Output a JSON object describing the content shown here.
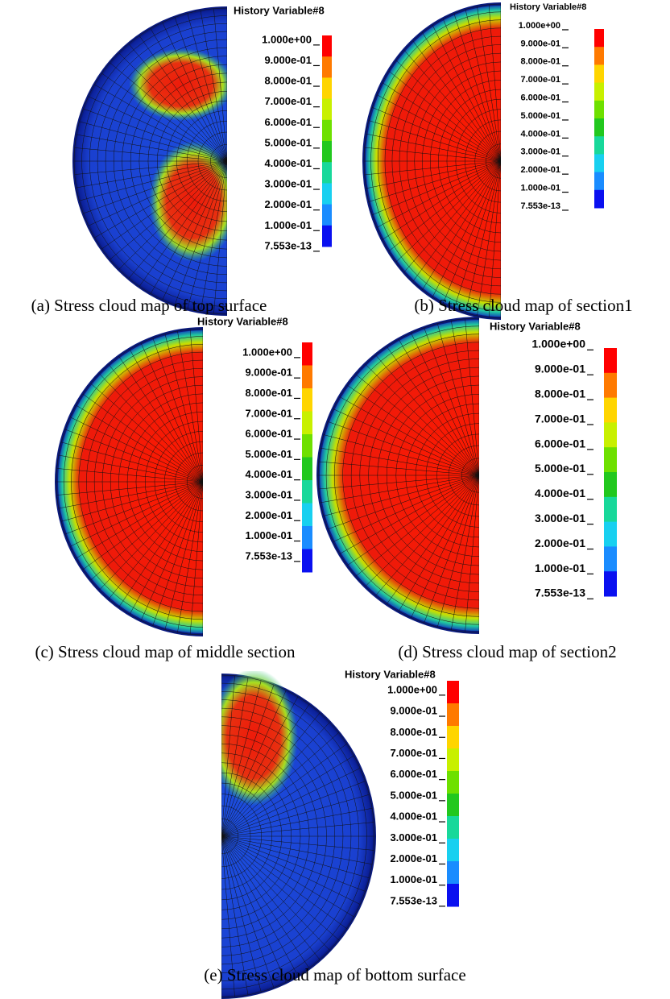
{
  "colorbar_colors": [
    "#ff0000",
    "#ff7a00",
    "#ffd500",
    "#c8f000",
    "#6ee000",
    "#22c81e",
    "#18d89a",
    "#18d0f0",
    "#1a8cff",
    "#0a10f0"
  ],
  "panels": [
    {
      "legend_title": "History Variable#8",
      "levels": [
        "1.000e+00",
        "9.000e-01",
        "8.000e-01",
        "7.000e-01",
        "6.000e-01",
        "5.000e-01",
        "4.000e-01",
        "3.000e-01",
        "2.000e-01",
        "1.000e-01",
        "7.553e-13"
      ],
      "caption": "(a) Stress cloud map of top surface"
    },
    {
      "legend_title": "History Variable#8",
      "levels": [
        "1.000e+00",
        "9.000e-01",
        "8.000e-01",
        "7.000e-01",
        "6.000e-01",
        "5.000e-01",
        "4.000e-01",
        "3.000e-01",
        "2.000e-01",
        "1.000e-01",
        "7.553e-13"
      ],
      "caption": "(b) Stress cloud map of section1"
    },
    {
      "legend_title": "History Variable#8",
      "levels": [
        "1.000e+00",
        "9.000e-01",
        "8.000e-01",
        "7.000e-01",
        "6.000e-01",
        "5.000e-01",
        "4.000e-01",
        "3.000e-01",
        "2.000e-01",
        "1.000e-01",
        "7.553e-13"
      ],
      "caption": "(c) Stress cloud map of middle section"
    },
    {
      "legend_title": "History Variable#8",
      "levels": [
        "1.000e+00",
        "9.000e-01",
        "8.000e-01",
        "7.000e-01",
        "6.000e-01",
        "5.000e-01",
        "4.000e-01",
        "3.000e-01",
        "2.000e-01",
        "1.000e-01",
        "7.553e-13"
      ],
      "caption": "(d) Stress cloud map of section2"
    },
    {
      "legend_title": "History Variable#8",
      "levels": [
        "1.000e+00",
        "9.000e-01",
        "8.000e-01",
        "7.000e-01",
        "6.000e-01",
        "5.000e-01",
        "4.000e-01",
        "3.000e-01",
        "2.000e-01",
        "1.000e-01",
        "7.553e-13"
      ],
      "caption": "(e) Stress cloud map of bottom surface"
    }
  ]
}
